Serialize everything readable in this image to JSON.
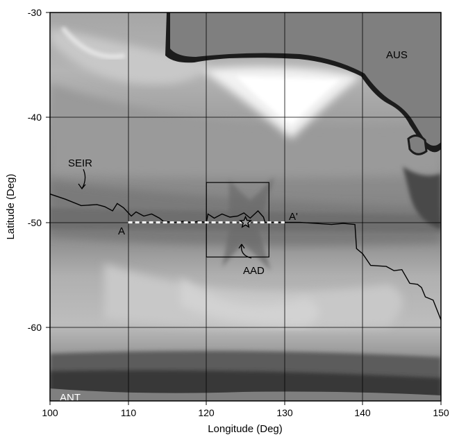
{
  "axes": {
    "x_title": "Longitude (Deg)",
    "y_title": "Latitude (Deg)",
    "x_ticks": [
      "100",
      "110",
      "120",
      "130",
      "140",
      "150"
    ],
    "y_ticks": [
      "-30",
      "-40",
      "-50",
      "-60"
    ]
  },
  "labels": {
    "aus": "AUS",
    "ant": "ANT",
    "seir": "SEIR",
    "aad": "AAD",
    "profile_start": "A",
    "profile_end": "A'"
  },
  "chart_data": {
    "type": "map",
    "xlim": [
      100,
      150
    ],
    "ylim": [
      -67,
      -30
    ],
    "grid": true,
    "profile_line": {
      "from": [
        110,
        -50
      ],
      "to": [
        130,
        -50
      ],
      "style": "white-dashed"
    },
    "aad_box": {
      "lon": [
        120,
        128
      ],
      "lat": [
        -53.3,
        -46.2
      ]
    },
    "star": [
      125,
      -50
    ],
    "seir_ridge_axis": [
      [
        100,
        -47.3
      ],
      [
        102,
        -47.8
      ],
      [
        104,
        -48.4
      ],
      [
        106,
        -48.3
      ],
      [
        107,
        -48.5
      ],
      [
        108,
        -48.9
      ],
      [
        108.6,
        -48.2
      ],
      [
        109.4,
        -48.6
      ],
      [
        110.4,
        -49.4
      ],
      [
        111,
        -49.0
      ],
      [
        112,
        -49.4
      ],
      [
        113,
        -49.2
      ],
      [
        114,
        -49.6
      ],
      [
        114.5,
        -49.9
      ],
      [
        116,
        -50.0
      ],
      [
        117,
        -49.9
      ],
      [
        118,
        -50.0
      ],
      [
        119,
        -49.9
      ],
      [
        120,
        -50.0
      ],
      [
        120.2,
        -49.2
      ],
      [
        121,
        -49.6
      ],
      [
        122,
        -49.2
      ],
      [
        123,
        -49.5
      ],
      [
        124,
        -49.4
      ],
      [
        124.8,
        -49.1
      ],
      [
        125.6,
        -49.6
      ],
      [
        126.6,
        -48.9
      ],
      [
        127.3,
        -49.5
      ],
      [
        127.5,
        -50.0
      ],
      [
        132,
        -50.0
      ],
      [
        136,
        -50.2
      ],
      [
        137.5,
        -50.1
      ],
      [
        139,
        -50.2
      ],
      [
        139.2,
        -52.5
      ],
      [
        140,
        -53
      ],
      [
        141,
        -54.1
      ],
      [
        143,
        -54.2
      ],
      [
        144,
        -54.6
      ],
      [
        145,
        -54.5
      ],
      [
        146,
        -55.8
      ],
      [
        147,
        -55.9
      ],
      [
        147.5,
        -56.2
      ],
      [
        148,
        -57.1
      ],
      [
        149,
        -57.4
      ],
      [
        150,
        -59.3
      ]
    ],
    "gravity_colorscale": "grayscale"
  }
}
